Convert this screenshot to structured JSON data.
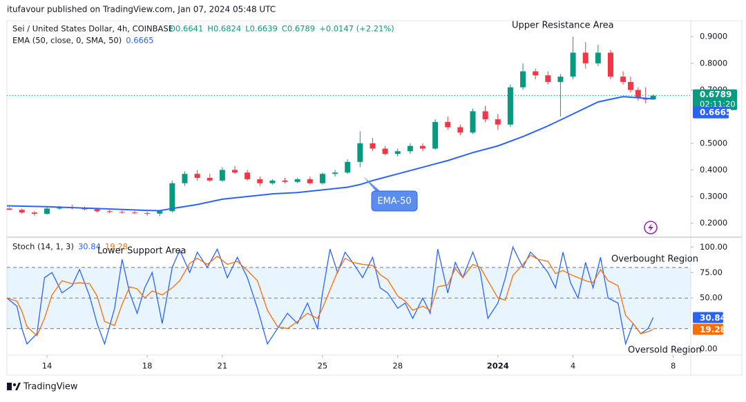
{
  "header": {
    "publisher": "itufavour published on TradingView.com, Jan 07, 2024 05:48 UTC"
  },
  "footer": {
    "brand": "TradingView"
  },
  "chart_data": [
    {
      "type": "candlestick",
      "title": "Sei / United States Dollar, 4h, COINBASE",
      "ohlc_legend": [
        "O0.6641",
        "H0.6824",
        "L0.6639",
        "C0.6789",
        "+0.0147 (+2.21%)"
      ],
      "up_color": "#089981",
      "down_color": "#f23645",
      "x": [
        12.5,
        13.0,
        13.5,
        14.0,
        14.5,
        15.0,
        15.5,
        16.0,
        16.5,
        17.0,
        17.5,
        18.0,
        18.5,
        19.0,
        19.5,
        20.0,
        20.5,
        21.0,
        21.5,
        22.0,
        22.5,
        23.0,
        23.5,
        24.0,
        24.5,
        25.0,
        25.5,
        26.0,
        26.5,
        27.0,
        27.5,
        28.0,
        28.5,
        29.0,
        29.5,
        30.0,
        30.5,
        31.0,
        31.5,
        32.0,
        32.5,
        33.0,
        33.5,
        34.0,
        34.5,
        35.0,
        35.5,
        36.0,
        36.5,
        37.0,
        37.3,
        37.6,
        37.9,
        38.2
      ],
      "open": [
        0.255,
        0.25,
        0.24,
        0.235,
        0.255,
        0.26,
        0.256,
        0.252,
        0.245,
        0.242,
        0.24,
        0.238,
        0.236,
        0.245,
        0.35,
        0.385,
        0.37,
        0.36,
        0.4,
        0.39,
        0.365,
        0.35,
        0.36,
        0.355,
        0.365,
        0.35,
        0.385,
        0.39,
        0.43,
        0.5,
        0.48,
        0.46,
        0.47,
        0.49,
        0.48,
        0.58,
        0.56,
        0.54,
        0.62,
        0.59,
        0.57,
        0.71,
        0.77,
        0.755,
        0.73,
        0.75,
        0.84,
        0.8,
        0.84,
        0.75,
        0.73,
        0.7,
        0.67,
        0.6641
      ],
      "high": [
        0.26,
        0.255,
        0.245,
        0.26,
        0.265,
        0.27,
        0.262,
        0.256,
        0.25,
        0.248,
        0.246,
        0.244,
        0.25,
        0.36,
        0.395,
        0.4,
        0.385,
        0.41,
        0.415,
        0.4,
        0.375,
        0.365,
        0.37,
        0.37,
        0.375,
        0.39,
        0.4,
        0.44,
        0.545,
        0.52,
        0.49,
        0.48,
        0.5,
        0.5,
        0.59,
        0.6,
        0.57,
        0.63,
        0.64,
        0.61,
        0.72,
        0.8,
        0.78,
        0.77,
        0.76,
        0.9,
        0.88,
        0.87,
        0.85,
        0.77,
        0.75,
        0.71,
        0.71,
        0.6824
      ],
      "low": [
        0.25,
        0.235,
        0.228,
        0.232,
        0.25,
        0.252,
        0.248,
        0.24,
        0.238,
        0.236,
        0.234,
        0.228,
        0.226,
        0.24,
        0.34,
        0.36,
        0.355,
        0.355,
        0.385,
        0.36,
        0.34,
        0.345,
        0.35,
        0.35,
        0.345,
        0.345,
        0.375,
        0.385,
        0.41,
        0.47,
        0.455,
        0.45,
        0.46,
        0.47,
        0.475,
        0.55,
        0.53,
        0.535,
        0.58,
        0.55,
        0.56,
        0.7,
        0.74,
        0.72,
        0.6,
        0.74,
        0.78,
        0.79,
        0.74,
        0.72,
        0.69,
        0.66,
        0.65,
        0.6639
      ],
      "close": [
        0.25,
        0.24,
        0.235,
        0.255,
        0.26,
        0.256,
        0.252,
        0.245,
        0.242,
        0.24,
        0.238,
        0.236,
        0.245,
        0.35,
        0.385,
        0.37,
        0.36,
        0.4,
        0.39,
        0.365,
        0.35,
        0.36,
        0.355,
        0.365,
        0.35,
        0.385,
        0.39,
        0.43,
        0.5,
        0.48,
        0.46,
        0.47,
        0.49,
        0.48,
        0.58,
        0.56,
        0.54,
        0.62,
        0.59,
        0.57,
        0.71,
        0.77,
        0.755,
        0.73,
        0.75,
        0.84,
        0.8,
        0.84,
        0.75,
        0.73,
        0.7,
        0.67,
        0.6641,
        0.6789
      ],
      "last_price": 0.6789,
      "countdown": "02:11:20",
      "ema": {
        "name": "EMA (50, close, 0, SMA, 50)",
        "color": "#2962ff",
        "last_value": 0.6665,
        "x": [
          12.4,
          14,
          16,
          18,
          18.5,
          19,
          20,
          21,
          22,
          23,
          24,
          25,
          26,
          26.5,
          27,
          28,
          29,
          30,
          31,
          32,
          33,
          34,
          35,
          36,
          37,
          38.2
        ],
        "values": [
          0.265,
          0.262,
          0.255,
          0.248,
          0.247,
          0.255,
          0.27,
          0.29,
          0.3,
          0.31,
          0.315,
          0.325,
          0.335,
          0.345,
          0.36,
          0.385,
          0.41,
          0.435,
          0.465,
          0.49,
          0.525,
          0.565,
          0.61,
          0.655,
          0.675,
          0.6665
        ]
      },
      "annotations": [
        "Upper Resistance Area",
        "EMA-50"
      ],
      "xlim": [
        12.4,
        39.7
      ],
      "ylim": [
        0.15,
        0.96
      ],
      "yticks": [
        {
          "value": 0.2,
          "label": "0.2000"
        },
        {
          "value": 0.3,
          "label": "0.3000"
        },
        {
          "value": 0.4,
          "label": "0.4000"
        },
        {
          "value": 0.5,
          "label": "0.5000"
        },
        {
          "value": 0.7,
          "label": "0.7000"
        },
        {
          "value": 0.8,
          "label": "0.8000"
        },
        {
          "value": 0.9,
          "label": "0.9000"
        }
      ]
    },
    {
      "type": "line",
      "title": "Stoch (14, 1, 3)",
      "x": [
        12.4,
        12.8,
        13.0,
        13.2,
        13.6,
        13.9,
        14.2,
        14.6,
        15.0,
        15.3,
        15.7,
        16.0,
        16.3,
        16.7,
        17.0,
        17.3,
        17.6,
        17.9,
        18.2,
        18.6,
        19.0,
        19.3,
        19.7,
        20.0,
        20.4,
        20.8,
        21.2,
        21.6,
        22.0,
        22.4,
        22.8,
        23.2,
        23.6,
        24.0,
        24.4,
        24.8,
        25.0,
        25.3,
        25.6,
        25.9,
        26.2,
        26.6,
        27.0,
        27.3,
        27.6,
        28.0,
        28.3,
        28.6,
        29.0,
        29.3,
        29.6,
        30.0,
        30.3,
        30.6,
        31.0,
        31.3,
        31.6,
        32.0,
        32.3,
        32.6,
        33.0,
        33.3,
        33.6,
        34.0,
        34.3,
        34.6,
        34.9,
        35.2,
        35.5,
        35.8,
        36.1,
        36.4,
        36.8,
        37.1,
        37.4,
        37.7,
        38.0,
        38.2
      ],
      "series": [
        {
          "color": "#2962ff",
          "last_value": 30.84,
          "values": [
            50,
            42,
            20,
            5,
            15,
            70,
            75,
            55,
            62,
            78,
            52,
            25,
            5,
            40,
            88,
            55,
            35,
            60,
            75,
            25,
            80,
            97,
            75,
            95,
            80,
            98,
            70,
            90,
            70,
            40,
            5,
            20,
            35,
            25,
            45,
            20,
            55,
            98,
            75,
            95,
            85,
            70,
            90,
            60,
            55,
            40,
            45,
            30,
            50,
            35,
            98,
            55,
            85,
            70,
            95,
            75,
            30,
            45,
            70,
            100,
            80,
            95,
            88,
            75,
            60,
            95,
            65,
            50,
            85,
            60,
            90,
            50,
            45,
            5,
            25,
            15,
            20,
            30.84
          ]
        },
        {
          "color": "#ff6d00",
          "last_value": 19.28,
          "values": [
            50,
            47,
            37,
            22,
            13,
            30,
            53,
            67,
            64,
            65,
            64,
            52,
            27,
            23,
            44,
            61,
            59,
            50,
            57,
            53,
            60,
            67,
            84,
            89,
            83,
            91,
            83,
            86,
            77,
            67,
            38,
            22,
            20,
            27,
            35,
            30,
            40,
            58,
            76,
            89,
            85,
            83,
            82,
            73,
            68,
            52,
            47,
            38,
            42,
            38,
            61,
            63,
            79,
            70,
            83,
            80,
            67,
            50,
            48,
            72,
            83,
            92,
            88,
            86,
            74,
            77,
            73,
            70,
            67,
            65,
            78,
            67,
            62,
            33,
            25,
            15,
            17,
            19.28
          ]
        }
      ],
      "annotations": [
        "Lower Support Area",
        "Overbought Region",
        "Oversold Region"
      ],
      "levels": [
        80,
        50,
        20
      ],
      "band": [
        20,
        80
      ],
      "xlim": [
        12.4,
        39.7
      ],
      "ylim": [
        -6,
        109
      ],
      "yticks": [
        {
          "value": 0,
          "label": "0.00"
        },
        {
          "value": 50,
          "label": "50.00"
        },
        {
          "value": 75,
          "label": "75.00"
        },
        {
          "value": 100,
          "label": "100.00"
        }
      ],
      "xticks": [
        14,
        18,
        21,
        25,
        28,
        {
          "value": 32,
          "label": "2024"
        },
        {
          "value": 35,
          "label": "4"
        },
        {
          "value": 39,
          "label": "8"
        }
      ]
    }
  ]
}
